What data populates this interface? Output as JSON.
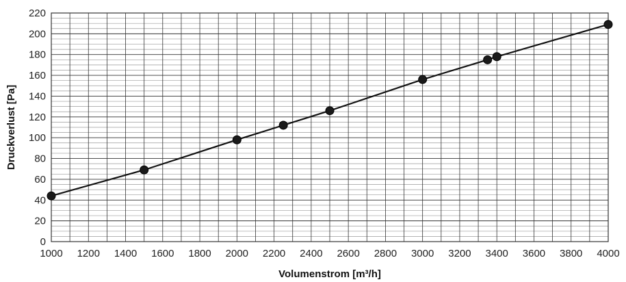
{
  "chart_data": {
    "type": "line",
    "title": "",
    "xlabel": "Volumenstrom [m³/h]",
    "ylabel": "Druckverlust [Pa]",
    "xlim": [
      1000,
      4000
    ],
    "ylim": [
      0,
      220
    ],
    "x_ticks": [
      1000,
      1200,
      1400,
      1600,
      1800,
      2000,
      2200,
      2400,
      2600,
      2800,
      3000,
      3200,
      3400,
      3600,
      3800,
      4000
    ],
    "y_ticks": [
      0,
      20,
      40,
      60,
      80,
      100,
      120,
      140,
      160,
      180,
      200,
      220
    ],
    "grid": true,
    "series": [
      {
        "x": [
          1000,
          1500,
          2000,
          2250,
          2500,
          3000,
          3350,
          3400,
          4000
        ],
        "y": [
          44,
          69,
          98,
          112,
          126,
          156,
          175,
          178,
          209
        ]
      }
    ],
    "colors": {
      "line": "#111111",
      "marker": "#1a1a1a",
      "grid_major": "#333333",
      "grid_minor": "#9a9a9a"
    }
  }
}
